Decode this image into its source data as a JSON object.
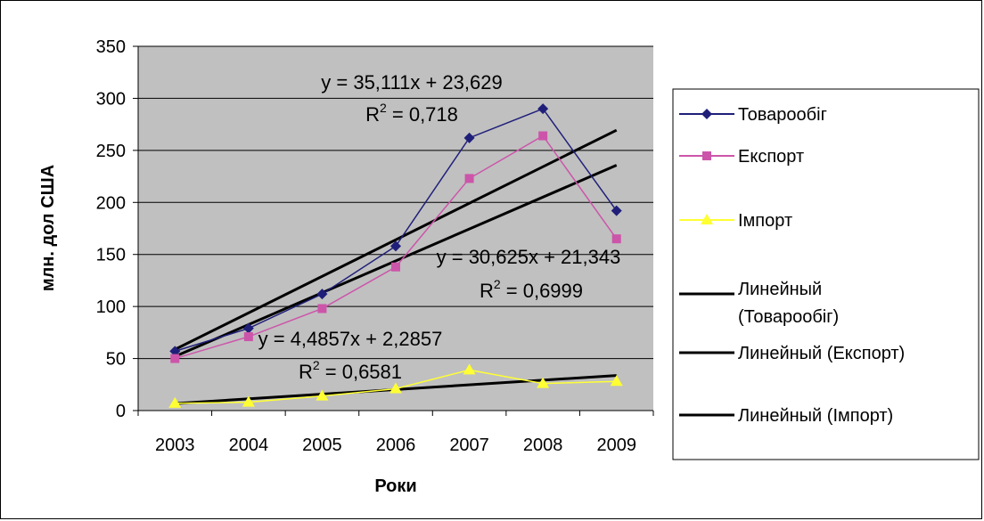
{
  "chart_data": {
    "type": "line",
    "categories": [
      "2003",
      "2004",
      "2005",
      "2006",
      "2007",
      "2008",
      "2009"
    ],
    "series": [
      {
        "name": "Товарообіг",
        "values": [
          57,
          79,
          112,
          158,
          262,
          290,
          192
        ],
        "color": "#1f1f7a",
        "marker": "diamond"
      },
      {
        "name": "Експорт",
        "values": [
          50,
          71,
          98,
          138,
          223,
          264,
          165
        ],
        "color": "#cc55aa",
        "marker": "square"
      },
      {
        "name": "Імпорт",
        "values": [
          7,
          8,
          14,
          21,
          39,
          26,
          28
        ],
        "color": "#ffff33",
        "marker": "triangle"
      }
    ],
    "trendlines": [
      {
        "name": "Линейный (Товарообіг)",
        "slope": 35.111,
        "intercept": 23.629,
        "equation": "y = 35,111x + 23,629",
        "r2_label": "R",
        "r2_value": " = 0,718"
      },
      {
        "name": "Линейный (Експорт)",
        "slope": 30.625,
        "intercept": 21.343,
        "equation": "y = 30,625x + 21,343",
        "r2_label": "R",
        "r2_value": " = 0,6999"
      },
      {
        "name": "Линейный (Імпорт)",
        "slope": 4.4857,
        "intercept": 2.2857,
        "equation": "y = 4,4857x + 2,2857",
        "r2_label": "R",
        "r2_value": " = 0,6581"
      }
    ],
    "legend_names": [
      "Товарообіг",
      "Експорт",
      "Імпорт",
      "Линейный",
      "(Товарообіг)",
      "Линейный (Експорт)",
      "Линейный (Імпорт)"
    ],
    "xlabel": "Роки",
    "ylabel": "млн. дол США",
    "ylim": [
      0,
      350
    ],
    "yticks": [
      "0",
      "50",
      "100",
      "150",
      "200",
      "250",
      "300",
      "350"
    ],
    "grid": true,
    "legend_position": "right",
    "colors": {
      "plot_background": "#c0c0c0",
      "trendline": "#000000"
    }
  }
}
